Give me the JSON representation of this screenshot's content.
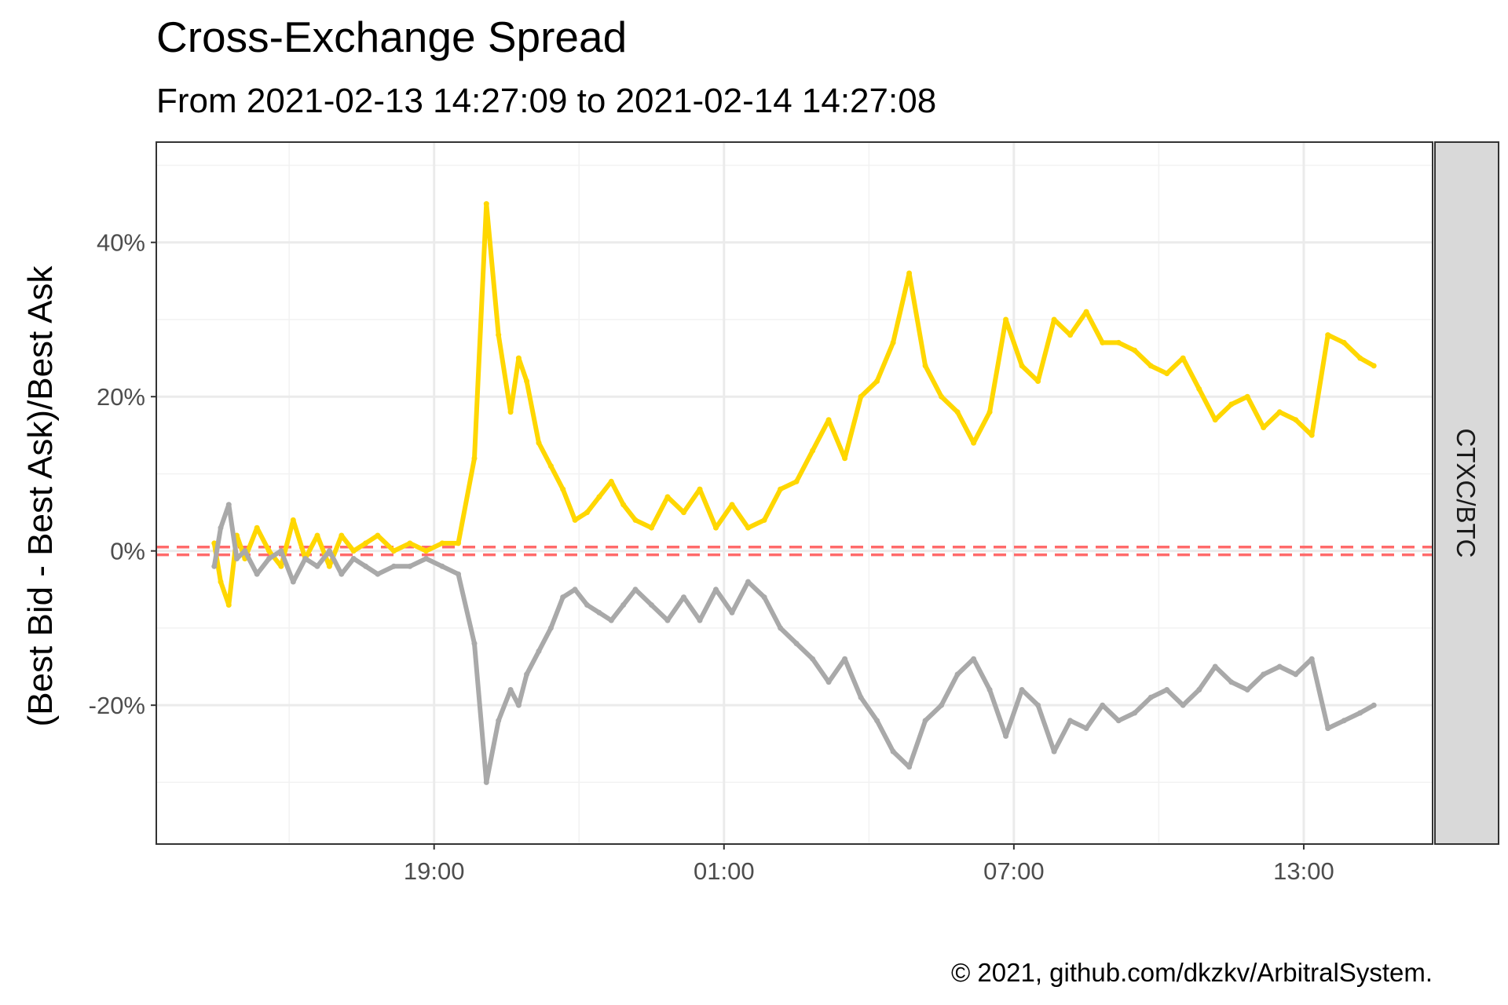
{
  "chart_data": {
    "type": "scatter",
    "title": "Cross-Exchange Spread",
    "subtitle": "From 2021-02-13 14:27:09 to 2021-02-14 14:27:08",
    "ylabel": "(Best Bid - Best Ask)/Best Ask",
    "xlabel": "",
    "facet_label": "CTXC/BTC",
    "caption": "© 2021, github.com/dkzkv/ArbitralSystem.",
    "x_ticks": [
      "19:00",
      "01:00",
      "07:00",
      "13:00"
    ],
    "y_ticks": [
      "40%",
      "20%",
      "0%",
      "-20%"
    ],
    "xlim": [
      "2021-02-13 13:15",
      "2021-02-14 15:40"
    ],
    "ylim": [
      -38,
      53
    ],
    "grid": true,
    "threshold_lines": [
      0.5,
      -0.5
    ],
    "colors": {
      "positive": "#FFD700",
      "negative": "#A9A9A9",
      "threshold": "#FF6B6B",
      "strip": "#D9D9D9"
    },
    "series": [
      {
        "name": "",
        "color": "#FFD700",
        "x": [
          "2021-02-13 14:27",
          "2021-02-13 14:35",
          "2021-02-13 14:45",
          "2021-02-13 14:55",
          "2021-02-13 15:05",
          "2021-02-13 15:20",
          "2021-02-13 15:35",
          "2021-02-13 15:50",
          "2021-02-13 16:05",
          "2021-02-13 16:20",
          "2021-02-13 16:35",
          "2021-02-13 16:50",
          "2021-02-13 17:05",
          "2021-02-13 17:20",
          "2021-02-13 17:35",
          "2021-02-13 17:50",
          "2021-02-13 18:10",
          "2021-02-13 18:30",
          "2021-02-13 18:50",
          "2021-02-13 19:10",
          "2021-02-13 19:30",
          "2021-02-13 19:50",
          "2021-02-13 20:05",
          "2021-02-13 20:20",
          "2021-02-13 20:35",
          "2021-02-13 20:45",
          "2021-02-13 20:55",
          "2021-02-13 21:10",
          "2021-02-13 21:25",
          "2021-02-13 21:40",
          "2021-02-13 21:55",
          "2021-02-13 22:10",
          "2021-02-13 22:25",
          "2021-02-13 22:40",
          "2021-02-13 22:55",
          "2021-02-13 23:10",
          "2021-02-13 23:30",
          "2021-02-13 23:50",
          "2021-02-14 00:10",
          "2021-02-14 00:30",
          "2021-02-14 00:50",
          "2021-02-14 01:10",
          "2021-02-14 01:30",
          "2021-02-14 01:50",
          "2021-02-14 02:10",
          "2021-02-14 02:30",
          "2021-02-14 02:50",
          "2021-02-14 03:10",
          "2021-02-14 03:30",
          "2021-02-14 03:50",
          "2021-02-14 04:10",
          "2021-02-14 04:30",
          "2021-02-14 04:50",
          "2021-02-14 05:10",
          "2021-02-14 05:30",
          "2021-02-14 05:50",
          "2021-02-14 06:10",
          "2021-02-14 06:30",
          "2021-02-14 06:50",
          "2021-02-14 07:10",
          "2021-02-14 07:30",
          "2021-02-14 07:50",
          "2021-02-14 08:10",
          "2021-02-14 08:30",
          "2021-02-14 08:50",
          "2021-02-14 09:10",
          "2021-02-14 09:30",
          "2021-02-14 09:50",
          "2021-02-14 10:10",
          "2021-02-14 10:30",
          "2021-02-14 10:50",
          "2021-02-14 11:10",
          "2021-02-14 11:30",
          "2021-02-14 11:50",
          "2021-02-14 12:10",
          "2021-02-14 12:30",
          "2021-02-14 12:50",
          "2021-02-14 13:10",
          "2021-02-14 13:30",
          "2021-02-14 13:50",
          "2021-02-14 14:10",
          "2021-02-14 14:27"
        ],
        "y": [
          1,
          -4,
          -7,
          2,
          -1,
          3,
          0,
          -2,
          4,
          -1,
          2,
          -2,
          2,
          0,
          1,
          2,
          0,
          1,
          0,
          1,
          1,
          12,
          45,
          28,
          18,
          25,
          22,
          14,
          11,
          8,
          4,
          5,
          7,
          9,
          6,
          4,
          3,
          7,
          5,
          8,
          3,
          6,
          3,
          4,
          8,
          9,
          13,
          17,
          12,
          20,
          22,
          27,
          36,
          24,
          20,
          18,
          14,
          18,
          30,
          24,
          22,
          30,
          28,
          31,
          27,
          27,
          26,
          24,
          23,
          25,
          21,
          17,
          19,
          20,
          16,
          18,
          17,
          15,
          28,
          27,
          25,
          24
        ]
      },
      {
        "name": "",
        "color": "#A9A9A9",
        "x": [
          "2021-02-13 14:27",
          "2021-02-13 14:35",
          "2021-02-13 14:45",
          "2021-02-13 14:55",
          "2021-02-13 15:05",
          "2021-02-13 15:20",
          "2021-02-13 15:35",
          "2021-02-13 15:50",
          "2021-02-13 16:05",
          "2021-02-13 16:20",
          "2021-02-13 16:35",
          "2021-02-13 16:50",
          "2021-02-13 17:05",
          "2021-02-13 17:20",
          "2021-02-13 17:35",
          "2021-02-13 17:50",
          "2021-02-13 18:10",
          "2021-02-13 18:30",
          "2021-02-13 18:50",
          "2021-02-13 19:10",
          "2021-02-13 19:30",
          "2021-02-13 19:50",
          "2021-02-13 20:05",
          "2021-02-13 20:20",
          "2021-02-13 20:35",
          "2021-02-13 20:45",
          "2021-02-13 20:55",
          "2021-02-13 21:10",
          "2021-02-13 21:25",
          "2021-02-13 21:40",
          "2021-02-13 21:55",
          "2021-02-13 22:10",
          "2021-02-13 22:25",
          "2021-02-13 22:40",
          "2021-02-13 22:55",
          "2021-02-13 23:10",
          "2021-02-13 23:30",
          "2021-02-13 23:50",
          "2021-02-14 00:10",
          "2021-02-14 00:30",
          "2021-02-14 00:50",
          "2021-02-14 01:10",
          "2021-02-14 01:30",
          "2021-02-14 01:50",
          "2021-02-14 02:10",
          "2021-02-14 02:30",
          "2021-02-14 02:50",
          "2021-02-14 03:10",
          "2021-02-14 03:30",
          "2021-02-14 03:50",
          "2021-02-14 04:10",
          "2021-02-14 04:30",
          "2021-02-14 04:50",
          "2021-02-14 05:10",
          "2021-02-14 05:30",
          "2021-02-14 05:50",
          "2021-02-14 06:10",
          "2021-02-14 06:30",
          "2021-02-14 06:50",
          "2021-02-14 07:10",
          "2021-02-14 07:30",
          "2021-02-14 07:50",
          "2021-02-14 08:10",
          "2021-02-14 08:30",
          "2021-02-14 08:50",
          "2021-02-14 09:10",
          "2021-02-14 09:30",
          "2021-02-14 09:50",
          "2021-02-14 10:10",
          "2021-02-14 10:30",
          "2021-02-14 10:50",
          "2021-02-14 11:10",
          "2021-02-14 11:30",
          "2021-02-14 11:50",
          "2021-02-14 12:10",
          "2021-02-14 12:30",
          "2021-02-14 12:50",
          "2021-02-14 13:10",
          "2021-02-14 13:30",
          "2021-02-14 13:50",
          "2021-02-14 14:10",
          "2021-02-14 14:27"
        ],
        "y": [
          -2,
          3,
          6,
          -1,
          0,
          -3,
          -1,
          0,
          -4,
          -1,
          -2,
          0,
          -3,
          -1,
          -2,
          -3,
          -2,
          -2,
          -1,
          -2,
          -3,
          -12,
          -30,
          -22,
          -18,
          -20,
          -16,
          -13,
          -10,
          -6,
          -5,
          -7,
          -8,
          -9,
          -7,
          -5,
          -7,
          -9,
          -6,
          -9,
          -5,
          -8,
          -4,
          -6,
          -10,
          -12,
          -14,
          -17,
          -14,
          -19,
          -22,
          -26,
          -28,
          -22,
          -20,
          -16,
          -14,
          -18,
          -24,
          -18,
          -20,
          -26,
          -22,
          -23,
          -20,
          -22,
          -21,
          -19,
          -18,
          -20,
          -18,
          -15,
          -17,
          -18,
          -16,
          -15,
          -16,
          -14,
          -23,
          -22,
          -21,
          -20
        ]
      }
    ]
  }
}
